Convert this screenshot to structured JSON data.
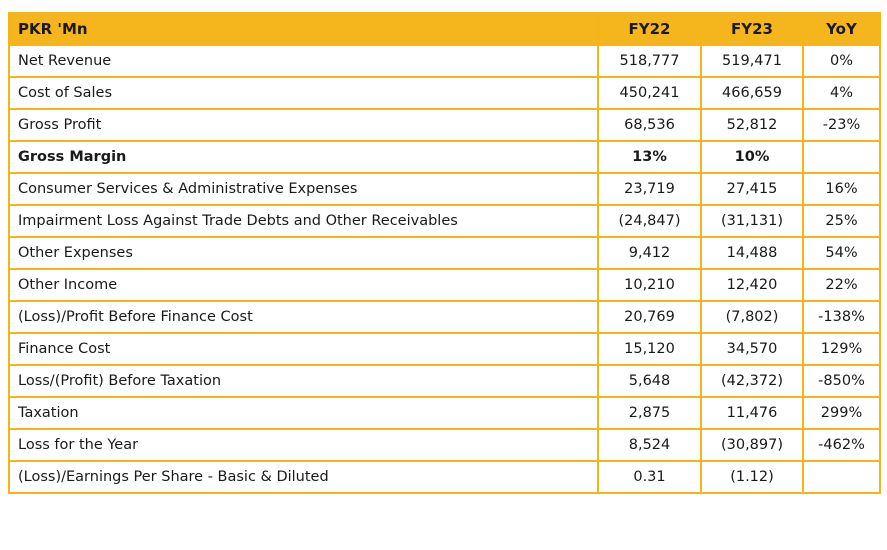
{
  "table": {
    "headers": [
      "PKR 'Mn",
      "FY22",
      "FY23",
      "YoY"
    ],
    "rows": [
      {
        "label": "Net Revenue",
        "fy22": "518,777",
        "fy23": "519,471",
        "yoy": "0%"
      },
      {
        "label": "Cost of Sales",
        "fy22": "450,241",
        "fy23": "466,659",
        "yoy": "4%"
      },
      {
        "label": "Gross Profit",
        "fy22": "68,536",
        "fy23": "52,812",
        "yoy": "-23%"
      },
      {
        "label": "Gross Margin",
        "fy22": "13%",
        "fy23": "10%",
        "yoy": "",
        "bold": true
      },
      {
        "label": "Consumer Services & Administrative Expenses",
        "fy22": "23,719",
        "fy23": "27,415",
        "yoy": "16%"
      },
      {
        "label": "Impairment Loss Against Trade Debts and Other Receivables",
        "fy22": "(24,847)",
        "fy23": "(31,131)",
        "yoy": "25%"
      },
      {
        "label": "Other Expenses",
        "fy22": "9,412",
        "fy23": "14,488",
        "yoy": "54%"
      },
      {
        "label": "Other Income",
        "fy22": "10,210",
        "fy23": "12,420",
        "yoy": "22%"
      },
      {
        "label": "(Loss)/Profit Before Finance Cost",
        "fy22": "20,769",
        "fy23": "(7,802)",
        "yoy": "-138%"
      },
      {
        "label": "Finance Cost",
        "fy22": "15,120",
        "fy23": "34,570",
        "yoy": "129%"
      },
      {
        "label": "Loss/(Profit) Before Taxation",
        "fy22": "5,648",
        "fy23": "(42,372)",
        "yoy": "-850%"
      },
      {
        "label": "Taxation",
        "fy22": "2,875",
        "fy23": "11,476",
        "yoy": "299%"
      },
      {
        "label": "Loss for the Year",
        "fy22": "8,524",
        "fy23": "(30,897)",
        "yoy": "-462%"
      },
      {
        "label": "(Loss)/Earnings Per Share - Basic & Diluted",
        "fy22": "0.31",
        "fy23": "(1.12)",
        "yoy": ""
      }
    ]
  },
  "colors": {
    "header_bg": "#F4B61C",
    "border": "#F4B41A"
  }
}
